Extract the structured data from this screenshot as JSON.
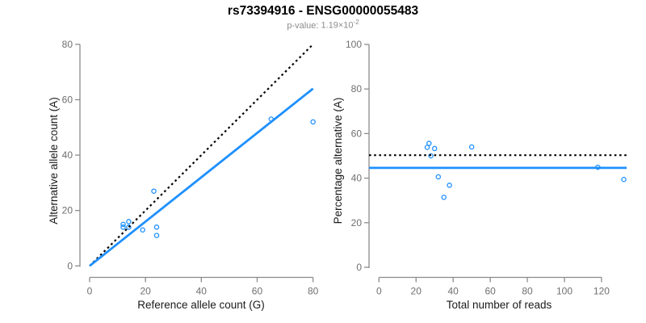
{
  "figure": {
    "title": "rs73394916 - ENSG00000055483",
    "subtitle_label": "p-value:",
    "subtitle_value": "1.19×10",
    "subtitle_exponent": "-2"
  },
  "colors": {
    "point_blue": "#1E90FF",
    "line_blue": "#1E90FF",
    "dotted_black": "#000000",
    "axis_stroke": "#8c8c8c",
    "tick_label": "#6f6f6f",
    "axis_title": "#1a1a1a",
    "title": "#000000",
    "subtitle": "#8c8c8c",
    "background": "#ffffff"
  },
  "chart_data": [
    {
      "name": "allele-count-scatter",
      "type": "scatter",
      "xlabel": "Reference allele count (G)",
      "ylabel": "Alternative allele count (A)",
      "xlim": [
        0,
        80
      ],
      "ylim": [
        0,
        80
      ],
      "xticks": [
        0,
        20,
        40,
        60,
        80
      ],
      "yticks": [
        0,
        20,
        40,
        60,
        80
      ],
      "grid": false,
      "legend": "none",
      "points": [
        [
          12,
          15
        ],
        [
          12,
          14
        ],
        [
          14,
          16
        ],
        [
          14,
          14
        ],
        [
          19,
          13
        ],
        [
          24,
          14
        ],
        [
          24,
          11
        ],
        [
          23,
          27
        ],
        [
          65,
          53
        ],
        [
          80,
          52
        ]
      ],
      "lines": [
        {
          "name": "identity-line",
          "style": "dotted",
          "color_key": "dotted_black",
          "from": [
            0,
            0
          ],
          "to": [
            80,
            80
          ]
        },
        {
          "name": "regression-line",
          "style": "solid",
          "color_key": "line_blue",
          "from": [
            0,
            0
          ],
          "to": [
            80,
            64
          ]
        }
      ]
    },
    {
      "name": "percentage-scatter",
      "type": "scatter",
      "xlabel": "Total number of reads",
      "ylabel": "Percentage alternative (A)",
      "xlim": [
        0,
        132
      ],
      "ylim": [
        0,
        100
      ],
      "xticks": [
        0,
        20,
        40,
        60,
        80,
        100,
        120
      ],
      "yticks": [
        0,
        20,
        40,
        60,
        80,
        100
      ],
      "grid": false,
      "legend": "none",
      "points": [
        [
          27,
          55.6
        ],
        [
          26,
          53.8
        ],
        [
          30,
          53.3
        ],
        [
          28,
          50
        ],
        [
          32,
          40.6
        ],
        [
          38,
          36.8
        ],
        [
          35,
          31.4
        ],
        [
          50,
          54
        ],
        [
          118,
          44.9
        ],
        [
          132,
          39.4
        ]
      ],
      "lines": [
        {
          "name": "expected-50-percent-line",
          "style": "dotted",
          "color_key": "dotted_black",
          "hline": 50.3
        },
        {
          "name": "mean-percentage-line",
          "style": "solid",
          "color_key": "line_blue",
          "hline": 44.6
        }
      ]
    }
  ]
}
